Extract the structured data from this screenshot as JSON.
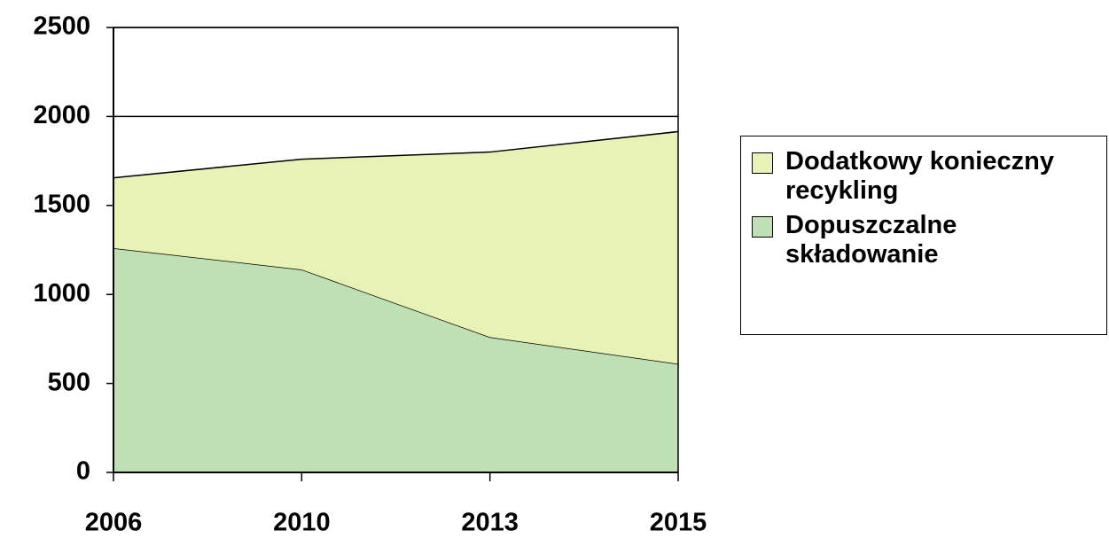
{
  "chart_data": {
    "type": "stacked_area",
    "categories": [
      "2006",
      "2010",
      "2013",
      "2015"
    ],
    "series": [
      {
        "name": "Dopuszczalne składowanie",
        "color": "#bfe0b4",
        "values": [
          1260,
          1140,
          760,
          610
        ]
      },
      {
        "name": "Dodatkowy konieczny recykling",
        "color": "#e8f2b4",
        "values": [
          395,
          620,
          1040,
          1305
        ]
      }
    ],
    "ylim": [
      0,
      2500
    ],
    "yticks": [
      0,
      500,
      1000,
      1500,
      2000,
      2500
    ],
    "grid": true,
    "legend": "right"
  }
}
